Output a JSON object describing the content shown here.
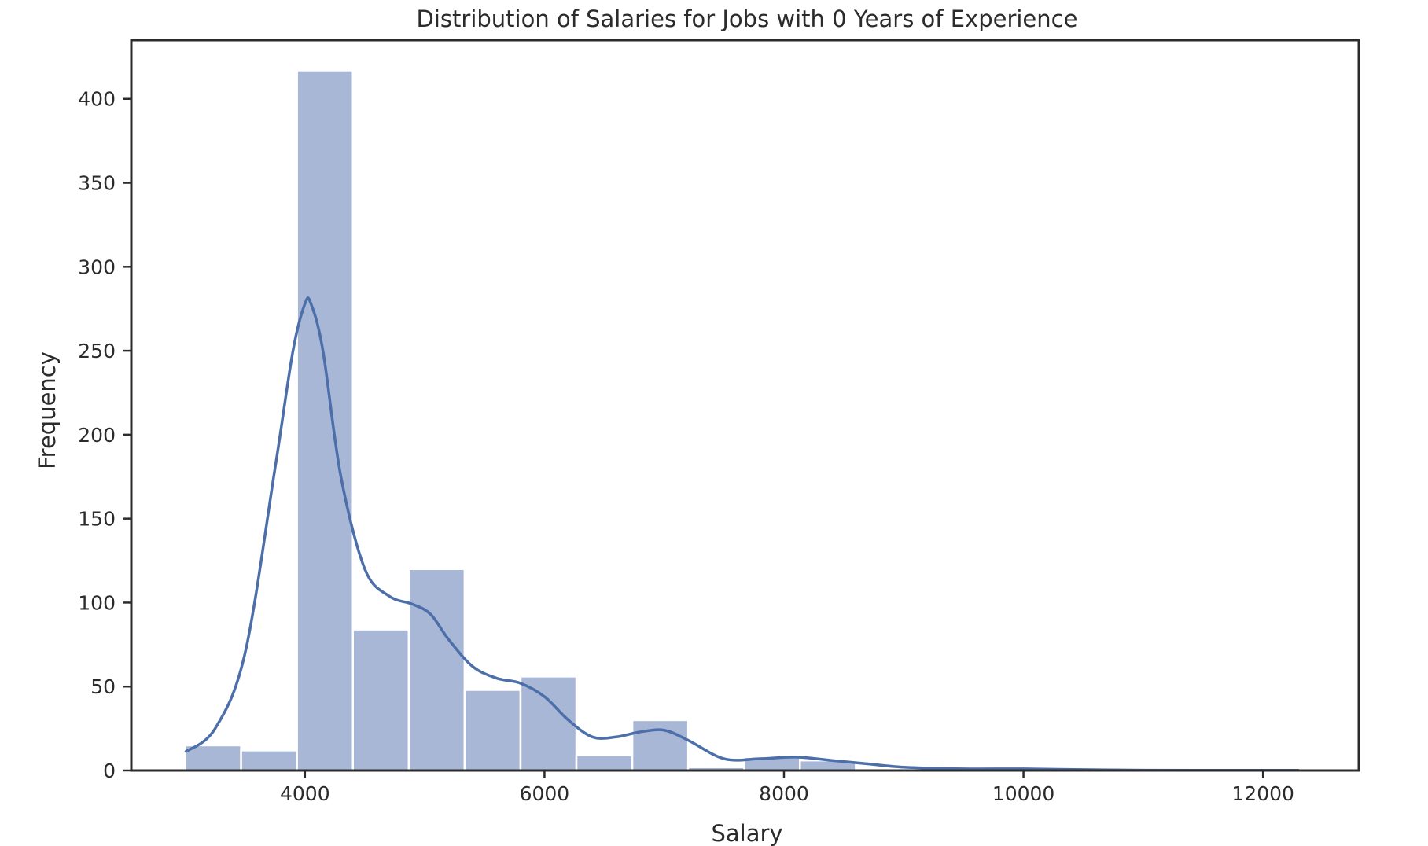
{
  "chart_data": {
    "type": "bar",
    "title": "Distribution of Salaries for Jobs with 0 Years of Experience",
    "xlabel": "Salary",
    "ylabel": "Frequency",
    "xlim": [
      2550,
      12800
    ],
    "ylim": [
      0,
      435
    ],
    "xticks": [
      4000,
      6000,
      8000,
      10000,
      12000
    ],
    "yticks": [
      0,
      50,
      100,
      150,
      200,
      250,
      300,
      350,
      400
    ],
    "grid": false,
    "bin_edges": [
      3000,
      3466.7,
      3933.3,
      4400,
      4866.7,
      5333.3,
      5800,
      6266.7,
      6733.3,
      7200,
      7666.7,
      8133.3,
      8600,
      9066.7,
      9533.3,
      10000,
      10466.7,
      10933.3,
      11400,
      11866.7,
      12333.3
    ],
    "counts": [
      15,
      12,
      417,
      84,
      120,
      48,
      56,
      9,
      30,
      2,
      8,
      6,
      0,
      0,
      0,
      1,
      0,
      0,
      0,
      1
    ],
    "kde": {
      "x": [
        3000,
        3250,
        3500,
        3750,
        3900,
        4000,
        4050,
        4150,
        4300,
        4500,
        4700,
        4900,
        5050,
        5200,
        5400,
        5600,
        5800,
        6000,
        6200,
        6400,
        6600,
        6800,
        7000,
        7200,
        7500,
        7800,
        8100,
        8400,
        8700,
        9000,
        9500,
        10000,
        10500,
        11000,
        11500,
        12000,
        12300
      ],
      "y": [
        11,
        25,
        70,
        180,
        250,
        278,
        278,
        250,
        175,
        120,
        104,
        99,
        93,
        78,
        62,
        55,
        52,
        44,
        30,
        20,
        20,
        23,
        24,
        18,
        7,
        7,
        8,
        6,
        4,
        2,
        1,
        1,
        0.5,
        0.2,
        0.1,
        0.1,
        0.1
      ]
    },
    "colors": {
      "bar_fill": "#a8b7d6",
      "bar_edge": "#ffffff",
      "kde_line": "#4c6ea9",
      "axes": "#2b2b2b"
    }
  }
}
